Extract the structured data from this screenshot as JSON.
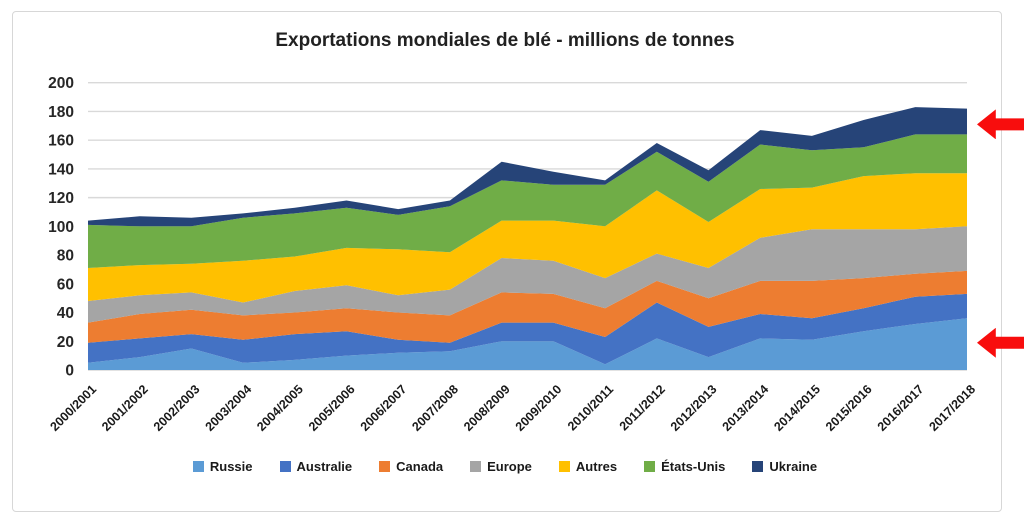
{
  "chart": {
    "title": "Exportations mondiales de blé - millions de tonnes"
  },
  "chart_data": {
    "type": "area",
    "stacked": true,
    "title": "Exportations mondiales de blé - millions de tonnes",
    "unit": "millions de tonnes",
    "categories": [
      "2000/2001",
      "2001/2002",
      "2002/2003",
      "2003/2004",
      "2004/2005",
      "2005/2006",
      "2006/2007",
      "2007/2008",
      "2008/2009",
      "2009/2010",
      "2010/2011",
      "2011/2012",
      "2012/2013",
      "2013/2014",
      "2014/2015",
      "2015/2016",
      "2016/2017",
      "2017/2018"
    ],
    "series": [
      {
        "name": "Russie",
        "color": "#5B9BD5",
        "values": [
          5,
          9,
          15,
          5,
          7,
          10,
          12,
          13,
          20,
          20,
          4,
          22,
          9,
          22,
          21,
          27,
          32,
          36
        ]
      },
      {
        "name": "Australie",
        "color": "#4472C4",
        "values": [
          14,
          13,
          10,
          16,
          18,
          17,
          9,
          6,
          13,
          13,
          19,
          25,
          21,
          17,
          15,
          16,
          19,
          17
        ]
      },
      {
        "name": "Canada",
        "color": "#ED7D31",
        "values": [
          14,
          17,
          17,
          17,
          15,
          16,
          19,
          19,
          21,
          20,
          20,
          15,
          20,
          23,
          26,
          21,
          16,
          16
        ]
      },
      {
        "name": "Europe",
        "color": "#A5A5A5",
        "values": [
          15,
          13,
          12,
          9,
          15,
          16,
          12,
          18,
          24,
          23,
          21,
          19,
          21,
          30,
          36,
          34,
          31,
          31
        ]
      },
      {
        "name": "Autres",
        "color": "#FFC000",
        "values": [
          23,
          21,
          20,
          29,
          24,
          26,
          32,
          26,
          26,
          28,
          36,
          44,
          32,
          34,
          29,
          37,
          39,
          37
        ]
      },
      {
        "name": "États-Unis",
        "color": "#70AD47",
        "values": [
          30,
          27,
          26,
          30,
          30,
          28,
          24,
          32,
          28,
          25,
          29,
          27,
          28,
          31,
          26,
          20,
          27,
          27
        ]
      },
      {
        "name": "Ukraine",
        "color": "#264478",
        "values": [
          3,
          7,
          6,
          3,
          4,
          5,
          4,
          4,
          13,
          9,
          3,
          6,
          8,
          10,
          10,
          19,
          19,
          18
        ]
      }
    ],
    "totals": [
      104,
      107,
      106,
      109,
      113,
      118,
      112,
      118,
      145,
      138,
      132,
      158,
      139,
      167,
      163,
      174,
      183,
      182
    ],
    "ylim": [
      0,
      200
    ],
    "ytick_step": 20,
    "grid": true,
    "legend_position": "bottom",
    "x_label_rotation": -45
  },
  "annotations": {
    "arrows": [
      {
        "name": "arrow-ukraine-band",
        "points_to": "Ukraine",
        "y_value": 171
      },
      {
        "name": "arrow-russie-band",
        "points_to": "Russie",
        "y_value": 19
      }
    ],
    "arrow_color": "#F80D0D"
  },
  "style_colors": {
    "gridline": "#D9D9D9",
    "axis_text": "#262626",
    "border": "#D7D7D7"
  }
}
